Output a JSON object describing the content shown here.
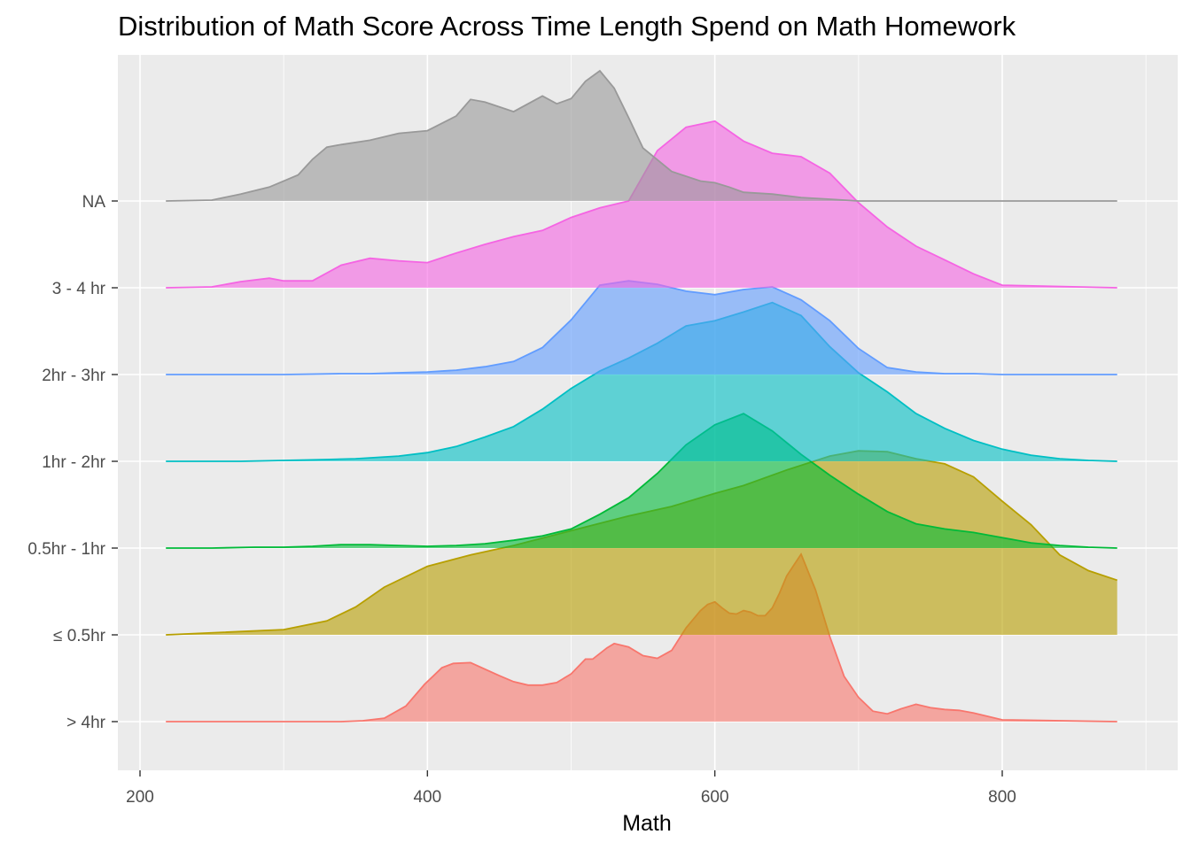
{
  "chart_data": {
    "type": "area",
    "subtype": "ridgeline",
    "title": "Distribution of Math Score Across Time Length Spend on Math Homework",
    "xlabel": "Math",
    "ylabel": "",
    "xlim": [
      205,
      895
    ],
    "x_ticks": [
      200,
      400,
      600,
      800
    ],
    "grid": true,
    "background": "#ebebeb",
    "legend": "none",
    "series": [
      {
        "name": "> 4hr",
        "color": "#F8766D",
        "x": [
          218,
          340,
          355,
          370,
          385,
          398,
          410,
          418,
          430,
          450,
          460,
          470,
          480,
          490,
          500,
          510,
          515,
          525,
          530,
          540,
          550,
          560,
          570,
          580,
          590,
          595,
          600,
          605,
          610,
          615,
          620,
          625,
          630,
          635,
          640,
          645,
          650,
          660,
          670,
          680,
          690,
          700,
          710,
          720,
          730,
          740,
          750,
          760,
          770,
          780,
          800,
          880
        ],
        "y": [
          0,
          0,
          0.01,
          0.04,
          0.18,
          0.43,
          0.62,
          0.67,
          0.68,
          0.53,
          0.46,
          0.42,
          0.42,
          0.45,
          0.55,
          0.72,
          0.72,
          0.85,
          0.9,
          0.86,
          0.76,
          0.73,
          0.82,
          1.08,
          1.28,
          1.35,
          1.38,
          1.31,
          1.25,
          1.24,
          1.28,
          1.26,
          1.22,
          1.22,
          1.31,
          1.48,
          1.68,
          1.93,
          1.52,
          0.98,
          0.52,
          0.28,
          0.12,
          0.09,
          0.15,
          0.2,
          0.16,
          0.14,
          0.13,
          0.1,
          0.02,
          0
        ]
      },
      {
        "name": "≤ 0.5hr",
        "color": "#B79F00",
        "x": [
          218,
          300,
          330,
          350,
          370,
          400,
          430,
          460,
          500,
          540,
          570,
          600,
          620,
          650,
          680,
          700,
          720,
          740,
          760,
          780,
          800,
          820,
          840,
          860,
          880
        ],
        "y": [
          0,
          0.06,
          0.16,
          0.32,
          0.55,
          0.79,
          0.92,
          1.03,
          1.2,
          1.37,
          1.48,
          1.63,
          1.72,
          1.9,
          2.06,
          2.12,
          2.11,
          2.03,
          1.97,
          1.82,
          1.54,
          1.27,
          0.92,
          0.74,
          0.63
        ]
      },
      {
        "name": "0.5hr - 1hr",
        "color": "#00BA38",
        "x": [
          218,
          250,
          280,
          300,
          320,
          340,
          360,
          380,
          400,
          420,
          440,
          460,
          480,
          500,
          520,
          540,
          560,
          580,
          600,
          620,
          640,
          660,
          680,
          700,
          720,
          740,
          760,
          780,
          800,
          820,
          840,
          860,
          880
        ],
        "y": [
          0,
          0,
          0.01,
          0.01,
          0.02,
          0.04,
          0.04,
          0.03,
          0.02,
          0.03,
          0.05,
          0.09,
          0.14,
          0.22,
          0.39,
          0.58,
          0.86,
          1.19,
          1.42,
          1.55,
          1.35,
          1.08,
          0.84,
          0.62,
          0.42,
          0.28,
          0.22,
          0.18,
          0.12,
          0.06,
          0.03,
          0.01,
          0
        ]
      },
      {
        "name": "1hr - 2hr",
        "color": "#00BFC4",
        "x": [
          218,
          270,
          300,
          330,
          350,
          380,
          400,
          420,
          440,
          460,
          480,
          500,
          520,
          540,
          560,
          580,
          600,
          620,
          640,
          660,
          680,
          700,
          720,
          740,
          760,
          780,
          800,
          820,
          840,
          860,
          880
        ],
        "y": [
          0,
          0,
          0.01,
          0.02,
          0.03,
          0.06,
          0.1,
          0.17,
          0.28,
          0.4,
          0.6,
          0.84,
          1.04,
          1.19,
          1.36,
          1.56,
          1.62,
          1.72,
          1.83,
          1.68,
          1.32,
          1.02,
          0.8,
          0.55,
          0.38,
          0.24,
          0.14,
          0.07,
          0.03,
          0.01,
          0
        ]
      },
      {
        "name": "2hr - 3hr",
        "color": "#619CFF",
        "x": [
          218,
          300,
          340,
          360,
          380,
          400,
          420,
          440,
          460,
          480,
          500,
          520,
          540,
          560,
          580,
          600,
          620,
          640,
          660,
          680,
          700,
          720,
          740,
          760,
          780,
          800,
          880
        ],
        "y": [
          0,
          0,
          0.01,
          0.01,
          0.02,
          0.03,
          0.05,
          0.09,
          0.15,
          0.31,
          0.63,
          1.03,
          1.08,
          1.04,
          0.96,
          0.92,
          0.98,
          1.01,
          0.86,
          0.62,
          0.3,
          0.08,
          0.03,
          0.01,
          0.01,
          0,
          0
        ]
      },
      {
        "name": "3 - 4 hr",
        "color": "#F564E3",
        "x": [
          218,
          250,
          270,
          290,
          300,
          320,
          340,
          360,
          380,
          400,
          420,
          440,
          460,
          480,
          500,
          520,
          540,
          560,
          580,
          600,
          620,
          640,
          660,
          680,
          700,
          720,
          740,
          760,
          780,
          800,
          880
        ],
        "y": [
          0,
          0.01,
          0.07,
          0.11,
          0.08,
          0.08,
          0.26,
          0.34,
          0.31,
          0.29,
          0.4,
          0.5,
          0.59,
          0.66,
          0.81,
          0.92,
          1.0,
          1.58,
          1.85,
          1.92,
          1.69,
          1.55,
          1.51,
          1.32,
          0.98,
          0.7,
          0.48,
          0.32,
          0.16,
          0.03,
          0
        ]
      },
      {
        "name": "NA",
        "color": "#999999",
        "x": [
          218,
          250,
          270,
          290,
          310,
          320,
          330,
          340,
          360,
          380,
          400,
          420,
          430,
          440,
          460,
          480,
          490,
          500,
          510,
          520,
          530,
          540,
          550,
          570,
          590,
          600,
          610,
          620,
          640,
          660,
          680,
          700,
          720,
          740,
          760,
          780,
          800,
          880
        ],
        "y": [
          0,
          0.01,
          0.08,
          0.16,
          0.3,
          0.48,
          0.62,
          0.65,
          0.7,
          0.78,
          0.81,
          0.98,
          1.17,
          1.14,
          1.03,
          1.21,
          1.12,
          1.18,
          1.38,
          1.5,
          1.3,
          0.96,
          0.61,
          0.34,
          0.23,
          0.21,
          0.16,
          0.1,
          0.08,
          0.04,
          0.02,
          0,
          0,
          0,
          0,
          0,
          0,
          0
        ]
      }
    ]
  }
}
